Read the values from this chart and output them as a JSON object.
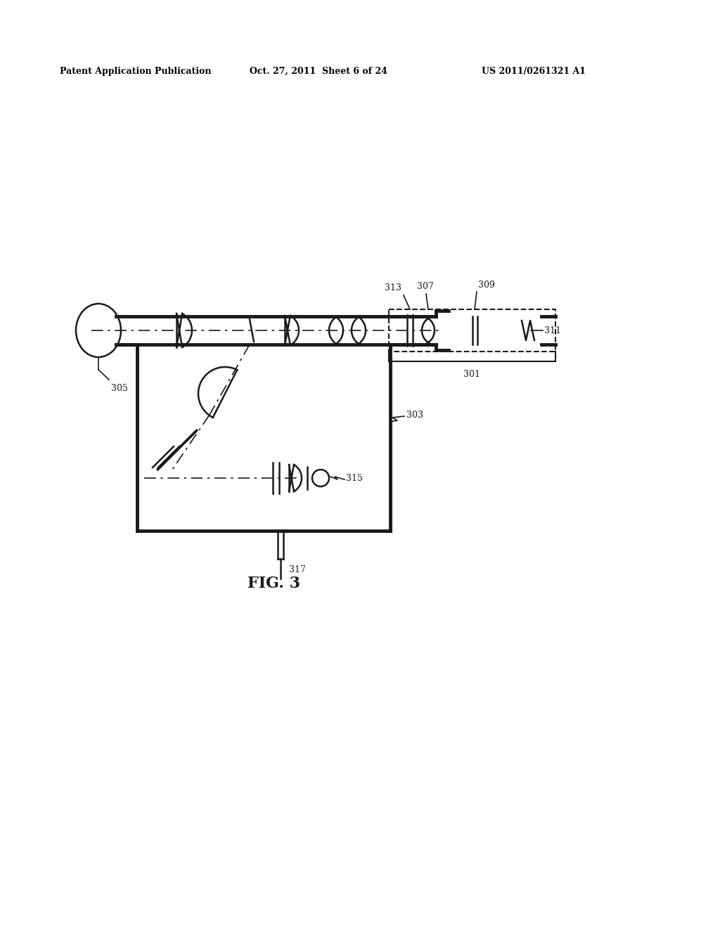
{
  "bg_color": "#ffffff",
  "line_color": "#1a1a1a",
  "header_text1": "Patent Application Publication",
  "header_text2": "Oct. 27, 2011  Sheet 6 of 24",
  "header_text3": "US 2011/0261321 A1",
  "fig_label": "FIG. 3"
}
